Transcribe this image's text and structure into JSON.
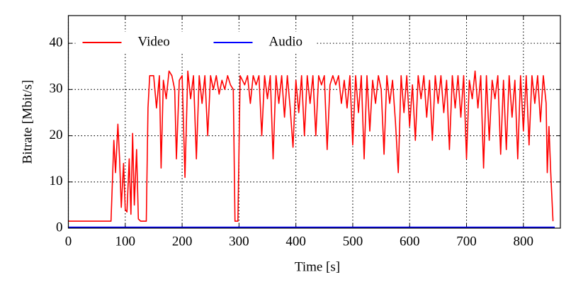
{
  "chart_data": {
    "type": "line",
    "xlabel": "Time [s]",
    "ylabel": "Bitrate [Mbit/s]",
    "xlim": [
      0,
      865
    ],
    "ylim": [
      0,
      46
    ],
    "xticks": [
      0,
      100,
      200,
      300,
      400,
      500,
      600,
      700,
      800
    ],
    "yticks": [
      0,
      10,
      20,
      30,
      40
    ],
    "grid": true,
    "legend": "upper left",
    "series": [
      {
        "name": "Video",
        "color": "#ff0000",
        "x": [
          0,
          75,
          80,
          83,
          87,
          90,
          93,
          97,
          100,
          103,
          107,
          110,
          113,
          116,
          120,
          123,
          127,
          137,
          140,
          143,
          150,
          155,
          160,
          163,
          167,
          172,
          177,
          182,
          187,
          190,
          195,
          200,
          205,
          210,
          215,
          220,
          225,
          230,
          235,
          240,
          245,
          250,
          255,
          260,
          265,
          270,
          275,
          280,
          285,
          290,
          293,
          298,
          302,
          310,
          315,
          320,
          325,
          330,
          335,
          340,
          345,
          350,
          355,
          360,
          365,
          370,
          375,
          380,
          385,
          390,
          395,
          400,
          405,
          410,
          415,
          420,
          425,
          430,
          435,
          440,
          445,
          450,
          455,
          460,
          465,
          470,
          475,
          480,
          485,
          490,
          495,
          500,
          505,
          510,
          515,
          520,
          525,
          530,
          535,
          540,
          545,
          550,
          555,
          560,
          565,
          570,
          575,
          580,
          585,
          590,
          595,
          600,
          605,
          610,
          615,
          620,
          625,
          630,
          635,
          640,
          645,
          650,
          655,
          660,
          665,
          670,
          675,
          680,
          685,
          690,
          695,
          700,
          705,
          710,
          715,
          720,
          725,
          730,
          735,
          740,
          745,
          750,
          755,
          760,
          765,
          770,
          775,
          780,
          785,
          790,
          795,
          800,
          805,
          810,
          815,
          820,
          825,
          830,
          835,
          840,
          842,
          845,
          848,
          852
        ],
        "values": [
          1.5,
          1.5,
          19,
          12,
          22.5,
          15,
          4.5,
          14,
          4,
          3.5,
          15,
          3,
          20.5,
          5,
          17,
          2,
          1.5,
          1.5,
          26,
          33,
          33,
          26,
          33,
          13,
          32,
          28,
          34,
          33,
          30,
          15,
          32,
          33,
          11,
          34,
          28,
          33,
          15,
          33,
          27,
          33,
          20,
          33,
          30,
          33,
          29,
          32,
          30,
          33,
          31,
          30,
          1.5,
          1.5,
          33,
          31,
          33,
          27,
          33,
          31,
          33,
          20,
          33,
          28,
          33,
          15,
          33,
          27,
          33,
          24,
          33,
          26,
          17.5,
          32,
          25,
          33,
          20,
          33,
          27,
          33,
          20,
          33,
          31,
          33,
          17,
          31,
          33,
          31,
          33,
          27,
          32,
          26,
          33,
          18,
          33,
          25,
          33,
          15,
          33,
          21,
          32,
          27,
          33,
          30,
          16,
          33,
          27,
          32,
          23,
          12,
          33,
          25,
          33,
          22,
          31,
          19,
          33,
          28,
          33,
          24,
          32,
          19,
          33,
          27,
          33,
          25,
          32,
          17,
          33,
          26,
          33,
          24,
          33,
          15,
          32,
          28,
          34,
          26,
          33,
          13,
          33,
          19,
          32,
          28,
          33,
          16,
          32,
          17,
          33,
          24,
          32,
          15,
          33,
          21,
          33,
          18,
          33,
          27,
          33,
          23,
          33,
          27,
          12,
          22,
          12,
          1.5
        ]
      },
      {
        "name": "Audio",
        "color": "#0000ff",
        "x": [
          0,
          855
        ],
        "values": [
          0.2,
          0.2
        ]
      }
    ]
  }
}
